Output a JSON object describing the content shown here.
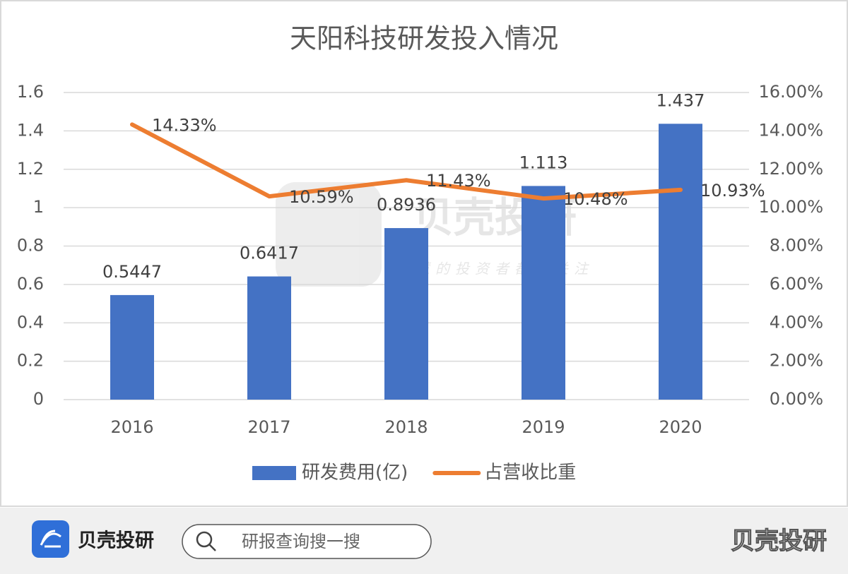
{
  "chart_data": {
    "type": "bar",
    "title": "天阳科技研发投入情况",
    "categories": [
      "2016",
      "2017",
      "2018",
      "2019",
      "2020"
    ],
    "series": [
      {
        "name": "研发费用(亿)",
        "type": "bar",
        "color": "#4472c4",
        "values": [
          0.5447,
          0.6417,
          0.8936,
          1.113,
          1.437
        ]
      },
      {
        "name": "占营收比重",
        "type": "line",
        "axis": "y2",
        "color": "#ed7d31",
        "values": [
          14.33,
          10.59,
          11.43,
          10.48,
          10.93
        ],
        "value_labels": [
          "14.33%",
          "10.59%",
          "11.43%",
          "10.48%",
          "10.93%"
        ]
      }
    ],
    "ylim": [
      0,
      1.6
    ],
    "yticks": [
      0,
      0.2,
      0.4,
      0.6,
      0.8,
      1,
      1.2,
      1.4,
      1.6
    ],
    "y2lim": [
      0,
      16
    ],
    "y2ticks": [
      {
        "value": 0,
        "label": "0.00%"
      },
      {
        "value": 2,
        "label": "2.00%"
      },
      {
        "value": 4,
        "label": "4.00%"
      },
      {
        "value": 6,
        "label": "6.00%"
      },
      {
        "value": 8,
        "label": "8.00%"
      },
      {
        "value": 10,
        "label": "10.00%"
      },
      {
        "value": 12,
        "label": "12.00%"
      },
      {
        "value": 14,
        "label": "14.00%"
      },
      {
        "value": 16,
        "label": "16.00%"
      }
    ],
    "grid": true,
    "legend": "bottom"
  },
  "watermark": {
    "brand": "贝壳投研",
    "slogan": "智慧的投资者都在关注"
  },
  "footer": {
    "logo_text": "贝壳投研",
    "search_placeholder": "研报查询搜一搜",
    "corner_text": "贝壳投研"
  }
}
